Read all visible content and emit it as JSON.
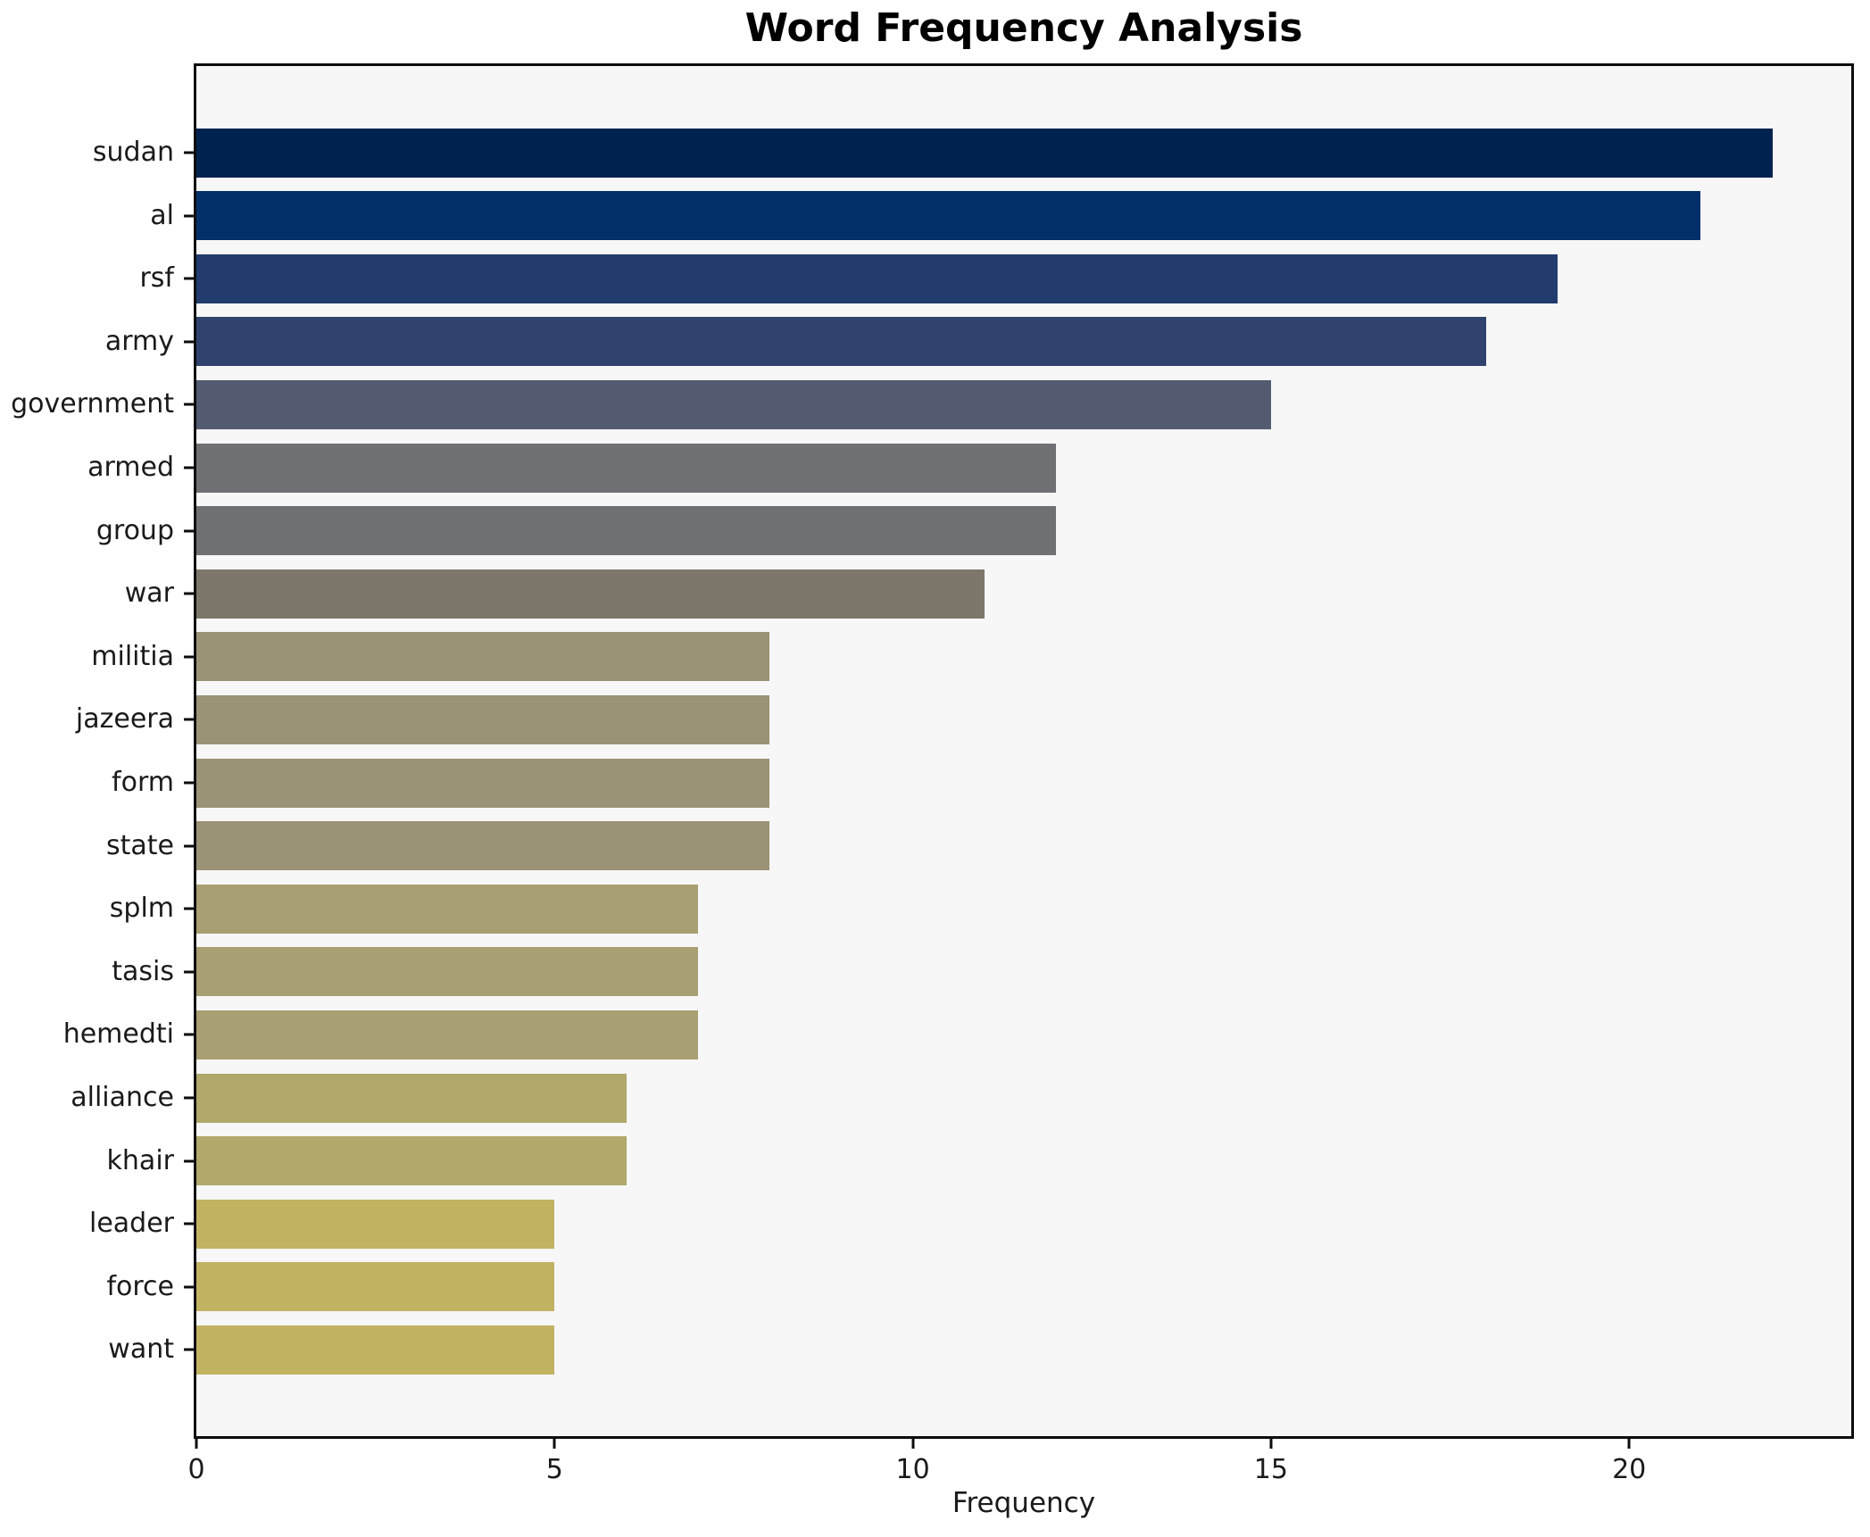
{
  "chart_data": {
    "type": "bar",
    "orientation": "horizontal",
    "title": "Word Frequency Analysis",
    "xlabel": "Frequency",
    "ylabel": "",
    "categories": [
      "sudan",
      "al",
      "rsf",
      "army",
      "government",
      "armed",
      "group",
      "war",
      "militia",
      "jazeera",
      "form",
      "state",
      "splm",
      "tasis",
      "hemedti",
      "alliance",
      "khair",
      "leader",
      "force",
      "want"
    ],
    "values": [
      22,
      21,
      19,
      18,
      15,
      12,
      12,
      11,
      8,
      8,
      8,
      8,
      7,
      7,
      7,
      6,
      6,
      5,
      5,
      5
    ],
    "bar_colors": [
      "#00224e",
      "#04306a",
      "#223c6e",
      "#30436e",
      "#535b70",
      "#6f7073",
      "#6f7073",
      "#7c776a",
      "#9b9376",
      "#9b9376",
      "#9b9376",
      "#9b9376",
      "#a89f72",
      "#a89f72",
      "#a89f72",
      "#b1a86c",
      "#b1a86c",
      "#c2b363",
      "#c2b363",
      "#c2b363"
    ],
    "xlim": [
      0,
      23.1
    ],
    "x_ticks": [
      0,
      5,
      10,
      15,
      20
    ],
    "x_tick_labels": [
      "0",
      "5",
      "10",
      "15",
      "20"
    ],
    "grid": false,
    "legend": "none",
    "plot_background": "#f7f7f7",
    "figure_background": "#ffffff",
    "frame_color": "#0d0d0d"
  }
}
